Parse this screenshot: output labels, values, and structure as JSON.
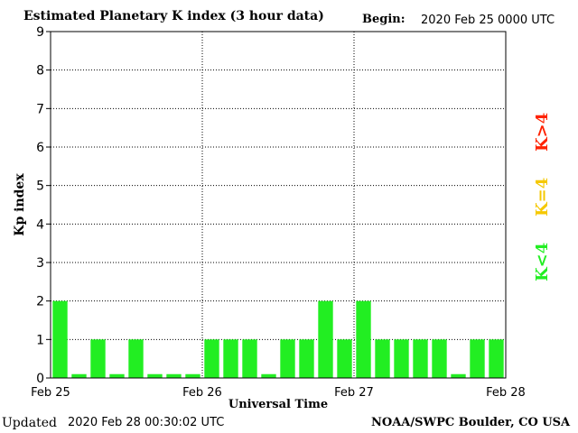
{
  "header": {
    "title": "Estimated Planetary K index (3 hour data)",
    "begin_label": "Begin:",
    "begin_value": "2020 Feb 25 0000 UTC"
  },
  "footer": {
    "updated_label": "Updated",
    "updated_value": "2020 Feb 28 00:30:02 UTC",
    "source": "NOAA/SWPC Boulder, CO USA"
  },
  "legend": {
    "items": [
      {
        "label": "K<4",
        "color": "#22ee22"
      },
      {
        "label": "K=4",
        "color": "#f5c800"
      },
      {
        "label": "K>4",
        "color": "#ff2200"
      }
    ]
  },
  "chart_data": {
    "type": "bar",
    "xlabel": "Universal Time",
    "ylabel": "Kp index",
    "ylim": [
      0,
      9
    ],
    "yticks": [
      0,
      1,
      2,
      3,
      4,
      5,
      6,
      7,
      8,
      9
    ],
    "xticks": [
      "Feb 25",
      "Feb 26",
      "Feb 27",
      "Feb 28"
    ],
    "bar_color": "#22ee22",
    "grid": "dotted",
    "values": [
      2,
      0.1,
      1,
      0.1,
      1,
      0.1,
      0.1,
      0.1,
      1,
      1,
      1,
      0.1,
      1,
      1,
      2,
      1,
      2,
      1,
      1,
      1,
      1,
      0.1,
      1,
      1
    ]
  }
}
